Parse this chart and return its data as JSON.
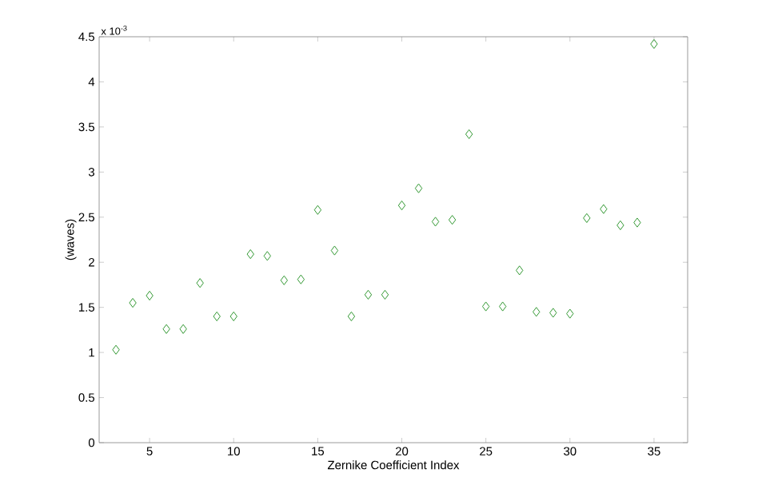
{
  "chart_data": {
    "type": "scatter",
    "xlabel": "Zernike Coefficient Index",
    "ylabel": "(waves)",
    "annotations": [
      "x 10$^{-3}$"
    ],
    "x": [
      3,
      4,
      5,
      6,
      7,
      8,
      9,
      10,
      11,
      12,
      13,
      14,
      15,
      16,
      17,
      18,
      19,
      20,
      21,
      22,
      23,
      24,
      25,
      26,
      27,
      28,
      29,
      30,
      31,
      32,
      33,
      34,
      35
    ],
    "series": [
      {
        "color": "#339933",
        "values": [
          1.03,
          1.55,
          1.63,
          1.26,
          1.26,
          1.77,
          1.4,
          1.4,
          2.09,
          2.07,
          1.8,
          1.81,
          2.58,
          2.13,
          1.4,
          1.64,
          1.64,
          2.63,
          2.82,
          2.45,
          2.47,
          3.42,
          1.51,
          1.51,
          1.91,
          1.45,
          1.44,
          1.43,
          2.49,
          2.59,
          2.41,
          2.44,
          4.42
        ]
      }
    ],
    "xlim": [
      2,
      37
    ],
    "ylim": [
      0,
      4.5
    ],
    "xticks": [
      5,
      10,
      15,
      20,
      25,
      30,
      35
    ],
    "yticks": [
      0,
      0.5,
      1,
      1.5,
      2,
      2.5,
      3,
      3.5,
      4,
      4.5
    ],
    "marker": "diamond",
    "grid": false
  }
}
